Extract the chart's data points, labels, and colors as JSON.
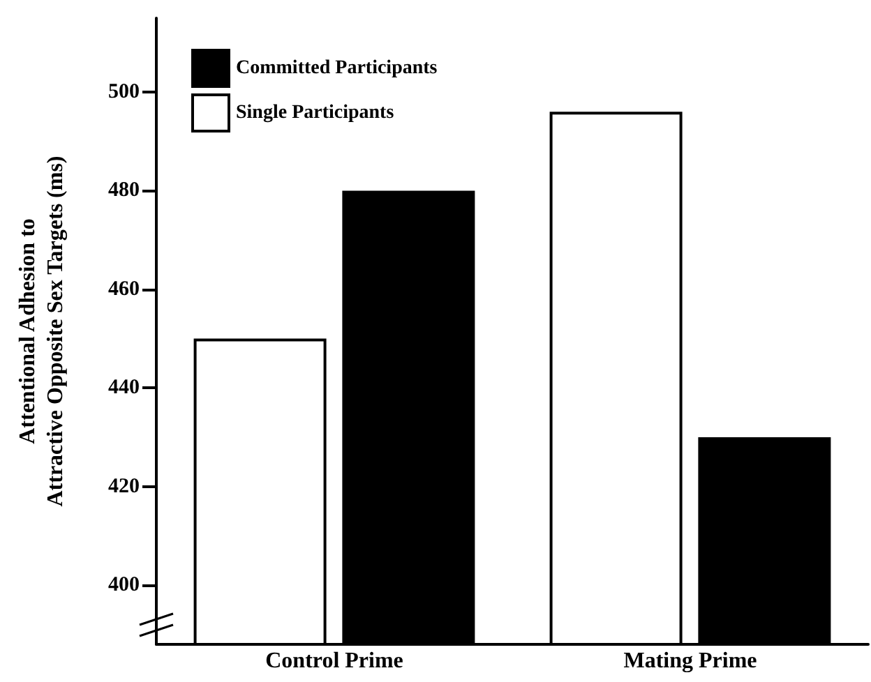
{
  "chart_data": {
    "type": "bar",
    "ylabel": "Attentional Adhesion to\nAttractive Opposite Sex Targets (ms)",
    "categories": [
      "Control Prime",
      "Mating Prime"
    ],
    "series": [
      {
        "name": "Single Participants",
        "color": "#ffffff",
        "values": [
          450,
          496
        ]
      },
      {
        "name": "Committed Participants",
        "color": "#000000",
        "values": [
          480,
          430
        ]
      }
    ],
    "ylim": [
      388,
      515
    ],
    "yticks": [
      400,
      420,
      440,
      460,
      480,
      500
    ],
    "grid": false,
    "legend": "top left"
  }
}
